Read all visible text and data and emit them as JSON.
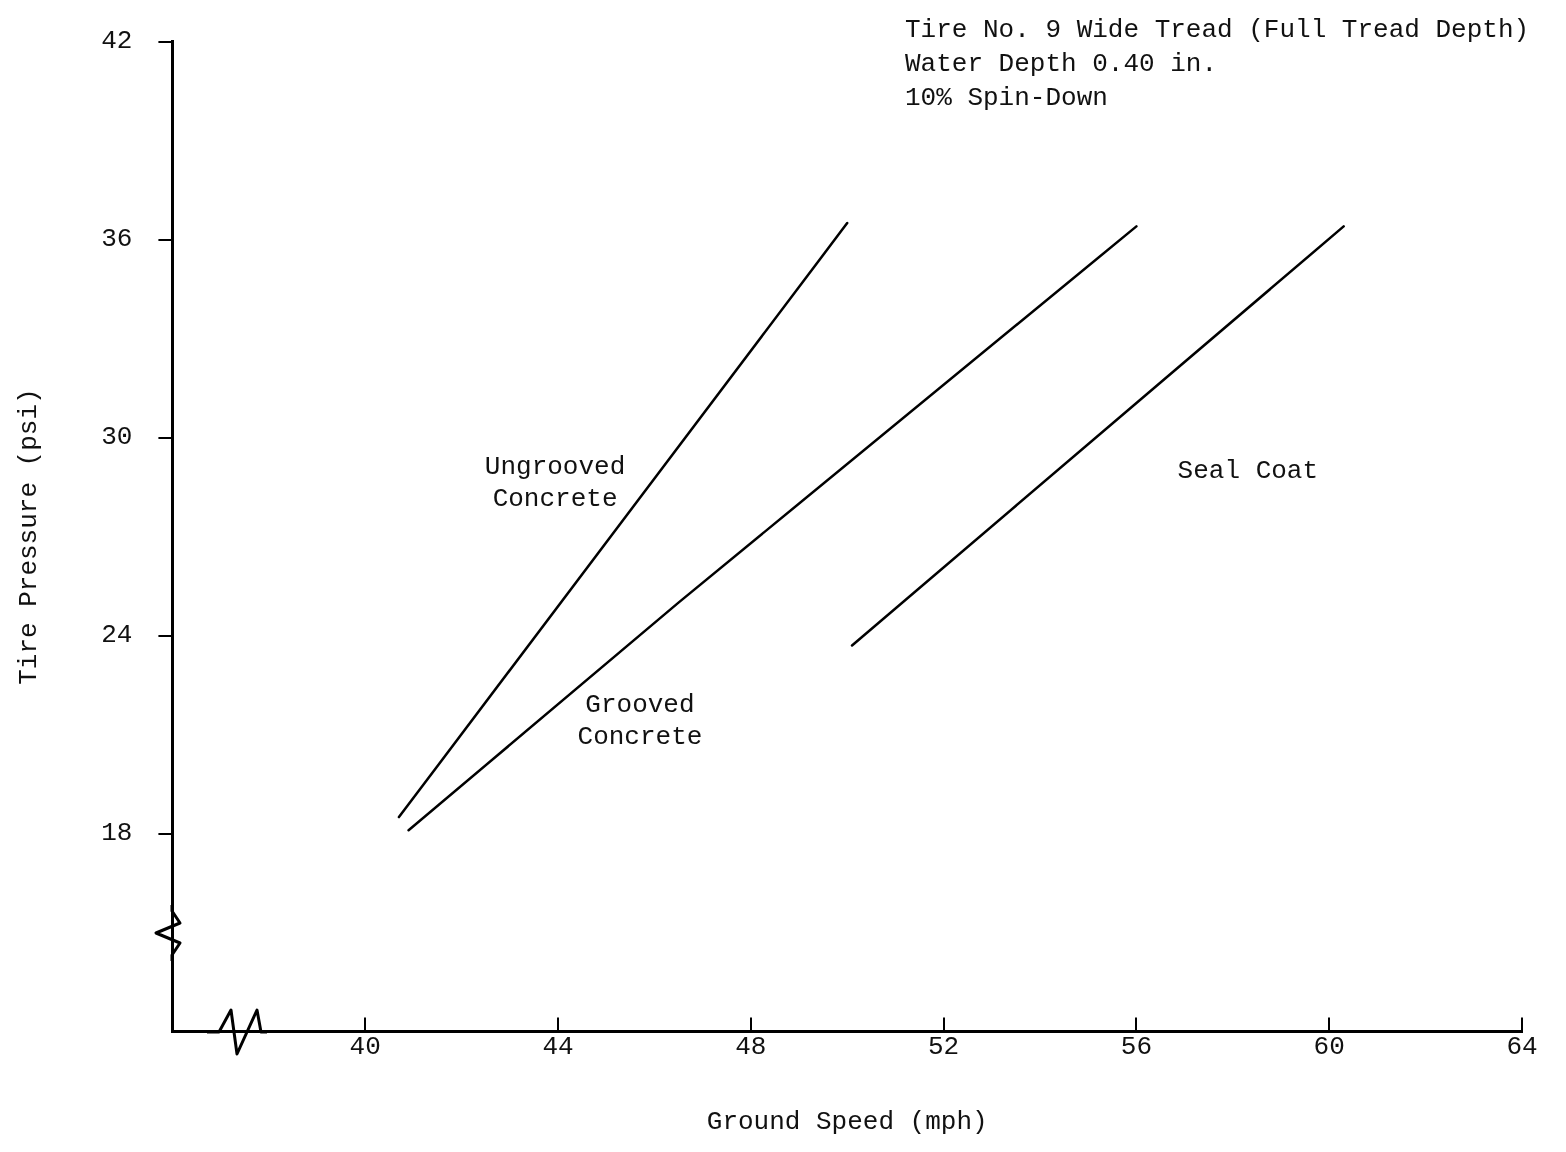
{
  "chart_data": {
    "type": "line",
    "xlabel": "Ground Speed (mph)",
    "ylabel": "Tire Pressure (psi)",
    "xlim": [
      36,
      64
    ],
    "xticks": [
      40,
      44,
      48,
      52,
      56,
      60,
      64
    ],
    "ylim": [
      12,
      42
    ],
    "yticks": [
      18,
      24,
      30,
      36,
      42
    ],
    "grid": false,
    "legend": false,
    "marker": "none",
    "line_style": "solid",
    "series": [
      {
        "name": "Ungrooved\nConcrete",
        "color": "#000000",
        "x": [
          40.7,
          50.0
        ],
        "values": [
          18.5,
          36.5
        ]
      },
      {
        "name": "Grooved\nConcrete",
        "color": "#000000",
        "x": [
          40.9,
          46.5,
          56.0
        ],
        "values": [
          18.1,
          25.0,
          36.4
        ]
      },
      {
        "name": "Seal Coat",
        "color": "#000000",
        "x": [
          50.1,
          60.3
        ],
        "values": [
          23.7,
          36.4
        ]
      }
    ],
    "annotations": [
      "Tire No. 9 Wide Tread (Full Tread Depth)",
      "Water Depth 0.40 in.",
      "10% Spin-Down"
    ]
  }
}
